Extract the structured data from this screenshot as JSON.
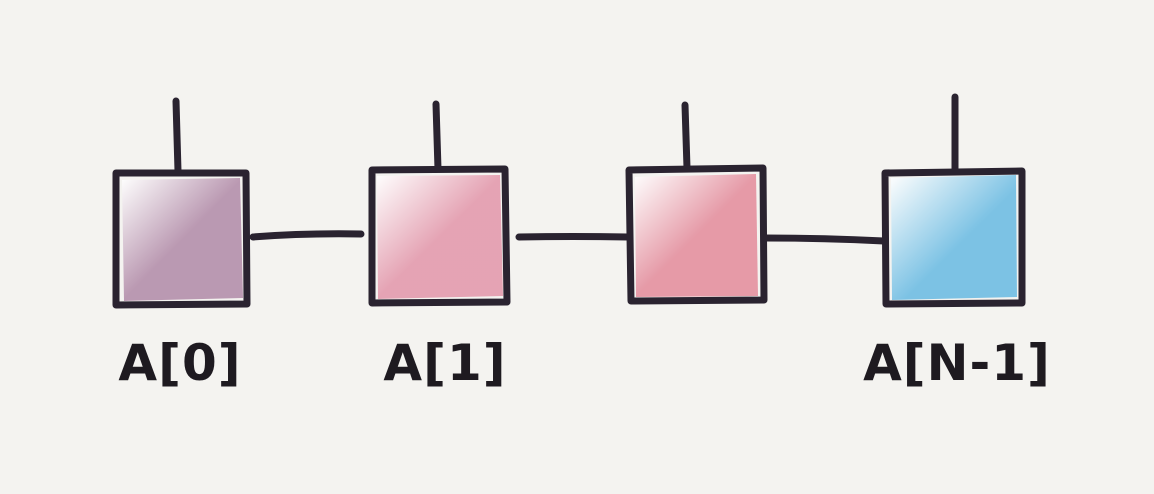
{
  "diagram": {
    "title": "",
    "nodes": [
      {
        "label": "A[0]",
        "color": "#b48fab"
      },
      {
        "label": "A[1]",
        "color": "#e39aad"
      },
      {
        "label": "",
        "color": "#e4909f"
      },
      {
        "label": "A[N-1]",
        "color": "#6fbde3"
      }
    ],
    "edges": [
      {
        "from": 0,
        "to": 1
      },
      {
        "from": 1,
        "to": 2
      },
      {
        "from": 2,
        "to": 3
      }
    ],
    "stroke_color": "#2a2330",
    "background": "#f4f3f0"
  }
}
